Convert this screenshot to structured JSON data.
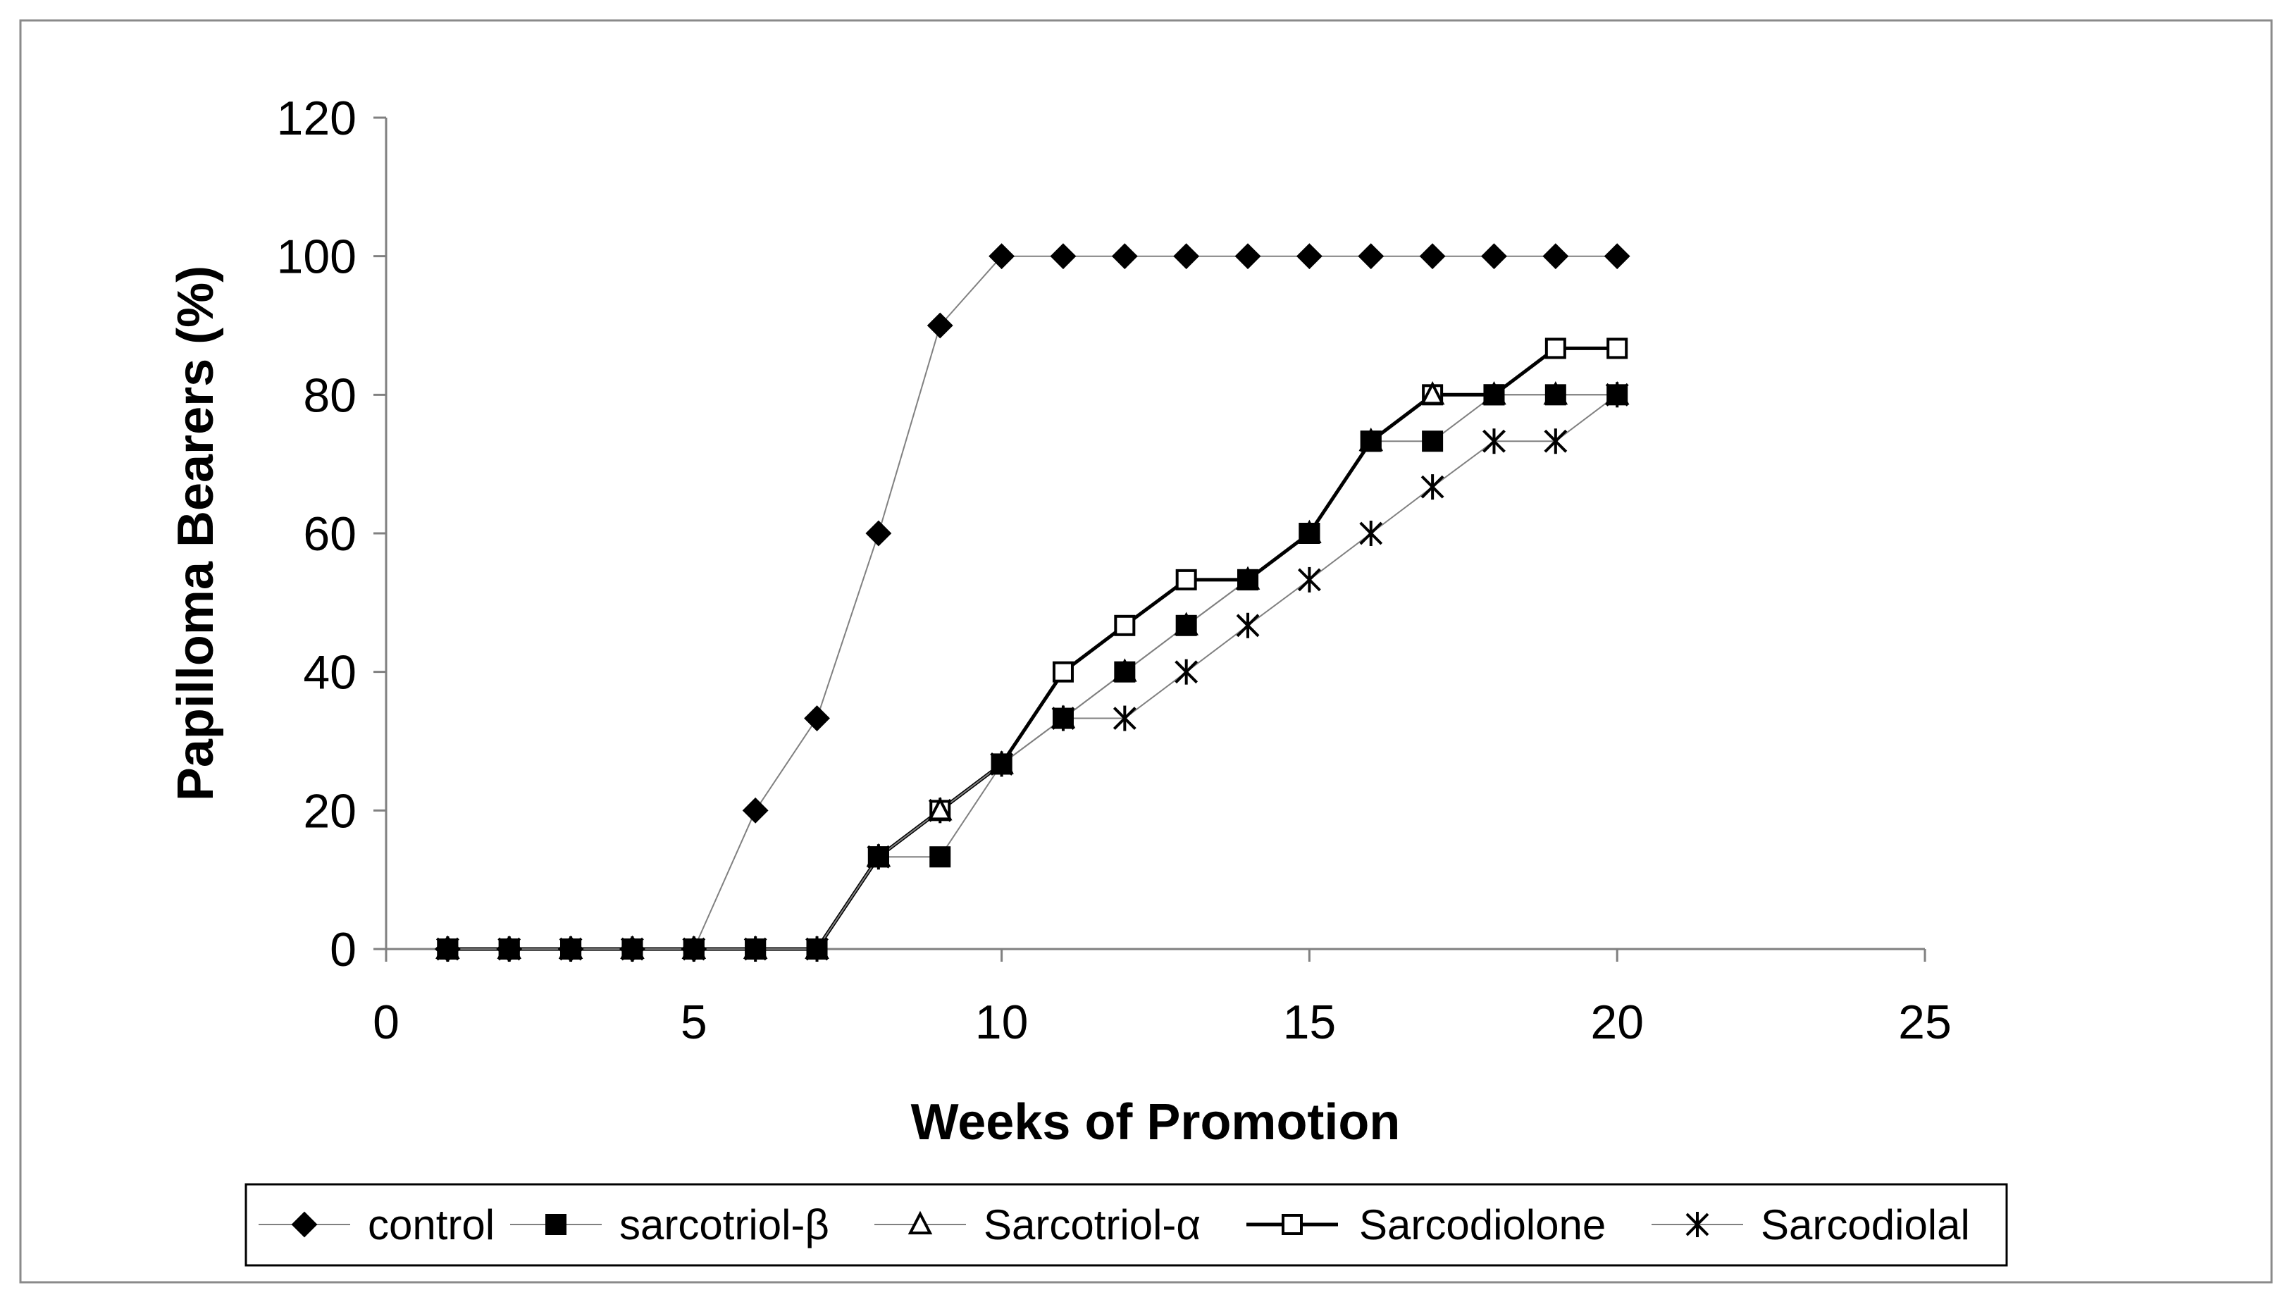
{
  "chart_data": {
    "type": "line",
    "title": "",
    "xlabel": "Weeks of Promotion",
    "ylabel": "Papilloma Bearers (%)",
    "xlim": [
      0,
      25
    ],
    "ylim": [
      0,
      120
    ],
    "xticks": [
      0,
      5,
      10,
      15,
      20,
      25
    ],
    "yticks": [
      0,
      20,
      40,
      60,
      80,
      100,
      120
    ],
    "grid": false,
    "legend_position": "bottom",
    "x": [
      1,
      2,
      3,
      4,
      5,
      6,
      7,
      8,
      9,
      10,
      11,
      12,
      13,
      14,
      15,
      16,
      17,
      18,
      19,
      20
    ],
    "series": [
      {
        "name": "control",
        "marker": "filled-diamond",
        "line": "thin",
        "values": [
          0,
          0,
          0,
          0,
          0,
          20,
          33.3,
          60,
          90,
          100,
          100,
          100,
          100,
          100,
          100,
          100,
          100,
          100,
          100,
          100
        ]
      },
      {
        "name": "sarcotriol-β",
        "marker": "filled-square",
        "line": "thin",
        "values": [
          0,
          0,
          0,
          0,
          0,
          0,
          0,
          13.3,
          13.3,
          26.7,
          33.3,
          40,
          46.7,
          53.3,
          60,
          73.3,
          73.3,
          80,
          80,
          80
        ]
      },
      {
        "name": "Sarcotriol-α",
        "marker": "open-triangle",
        "line": "thin",
        "values": [
          0,
          0,
          0,
          0,
          0,
          0,
          0,
          13.3,
          20,
          26.7,
          33.3,
          40,
          46.7,
          53.3,
          60,
          73.3,
          80,
          80,
          80,
          80
        ]
      },
      {
        "name": "Sarcodiolone",
        "marker": "open-square",
        "line": "thick",
        "values": [
          0,
          0,
          0,
          0,
          0,
          0,
          0,
          13.3,
          20,
          26.7,
          40,
          46.7,
          53.3,
          53.3,
          60,
          73.3,
          80,
          80,
          86.7,
          86.7
        ]
      },
      {
        "name": "Sarcodiolal",
        "marker": "asterisk",
        "line": "thin",
        "values": [
          0,
          0,
          0,
          0,
          0,
          0,
          0,
          13.3,
          20,
          26.7,
          33.3,
          33.3,
          40,
          46.7,
          53.3,
          60,
          66.7,
          73.3,
          73.3,
          80
        ]
      }
    ]
  }
}
